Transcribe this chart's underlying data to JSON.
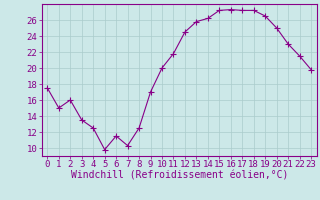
{
  "x": [
    0,
    1,
    2,
    3,
    4,
    5,
    6,
    7,
    8,
    9,
    10,
    11,
    12,
    13,
    14,
    15,
    16,
    17,
    18,
    19,
    20,
    21,
    22,
    23
  ],
  "y": [
    17.5,
    15.0,
    16.0,
    13.5,
    12.5,
    9.8,
    11.5,
    10.3,
    12.5,
    17.0,
    20.0,
    21.8,
    24.5,
    25.8,
    26.2,
    27.2,
    27.3,
    27.2,
    27.2,
    26.5,
    25.0,
    23.0,
    21.5,
    19.8
  ],
  "line_color": "#880088",
  "marker": "+",
  "marker_size": 4,
  "bg_color": "#cce8e8",
  "grid_color": "#aacccc",
  "xlabel": "Windchill (Refroidissement éolien,°C)",
  "xlim": [
    -0.5,
    23.5
  ],
  "ylim": [
    9.0,
    28.0
  ],
  "yticks": [
    10,
    12,
    14,
    16,
    18,
    20,
    22,
    24,
    26
  ],
  "xticks": [
    0,
    1,
    2,
    3,
    4,
    5,
    6,
    7,
    8,
    9,
    10,
    11,
    12,
    13,
    14,
    15,
    16,
    17,
    18,
    19,
    20,
    21,
    22,
    23
  ],
  "axis_color": "#880088",
  "tick_color": "#880088",
  "label_color": "#880088",
  "tick_fontsize": 6.5,
  "xlabel_fontsize": 7.0,
  "linewidth": 0.8,
  "markeredgewidth": 0.8
}
